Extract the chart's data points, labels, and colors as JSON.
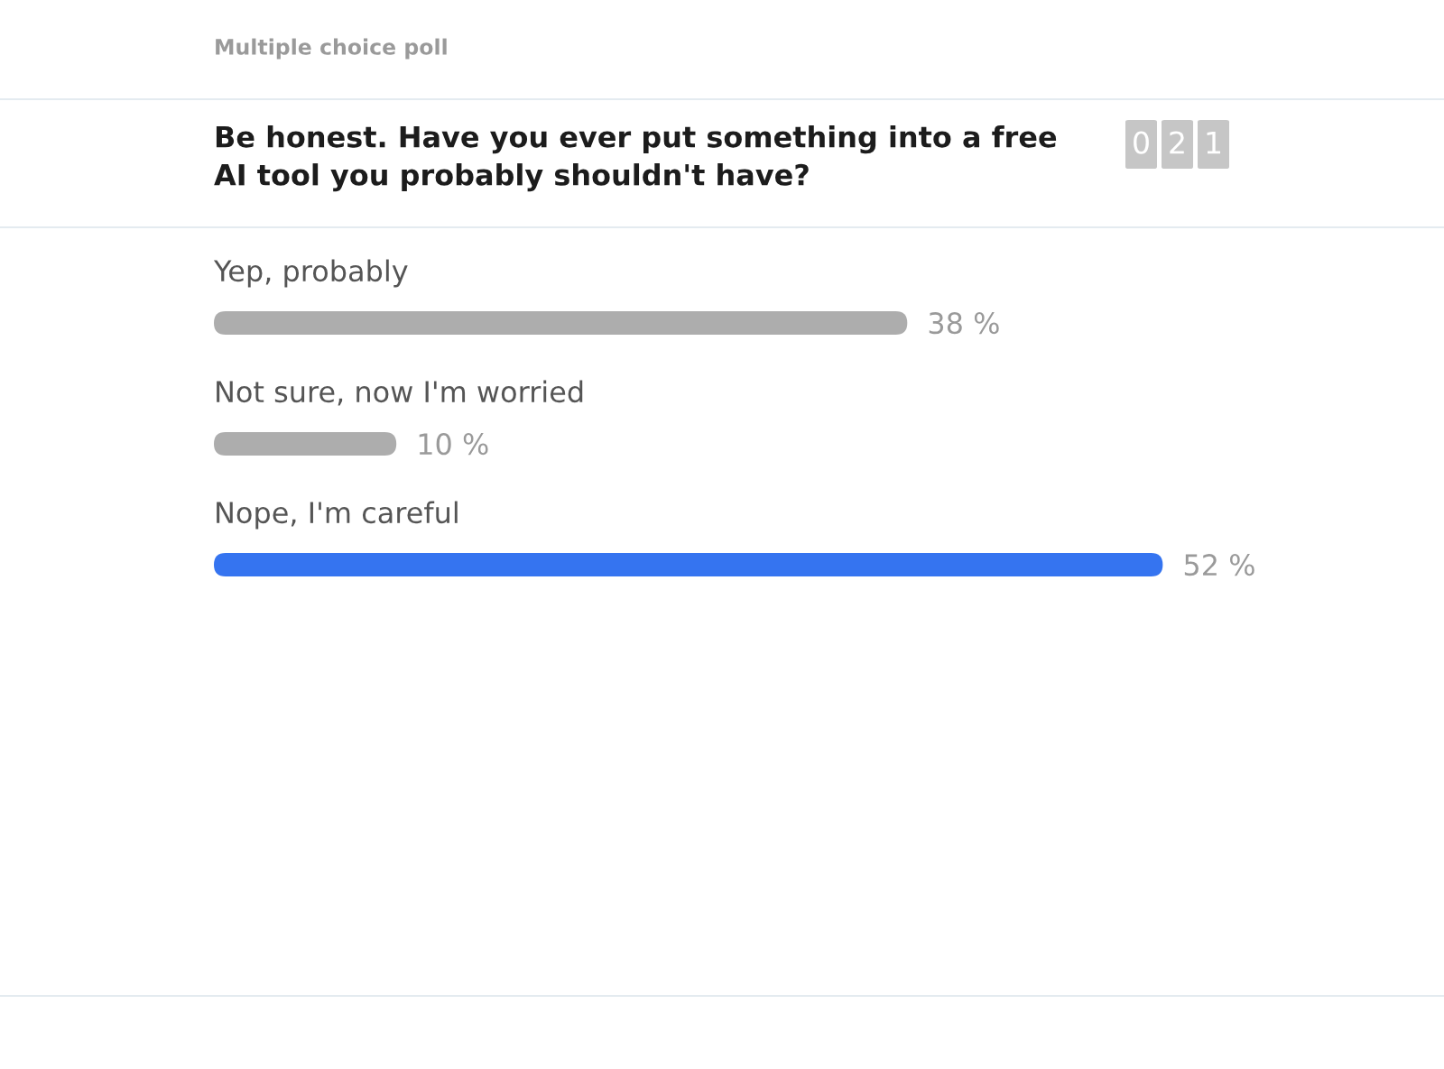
{
  "chart_data": {
    "type": "bar",
    "orientation": "horizontal",
    "subtitle": "Multiple choice poll",
    "title": "Be honest. Have you ever put something into a free AI tool you probably shouldn't have?",
    "annotations": [
      "021"
    ],
    "categories": [
      "Yep, probably",
      "Not sure, now I'm worried",
      "Nope, I'm careful"
    ],
    "values": [
      38,
      10,
      52
    ],
    "colors": [
      "#adadad",
      "#adadad",
      "#3574f0"
    ],
    "value_labels": [
      "38 %",
      "10 %",
      "52 %"
    ],
    "tick_labels": "y"
  }
}
